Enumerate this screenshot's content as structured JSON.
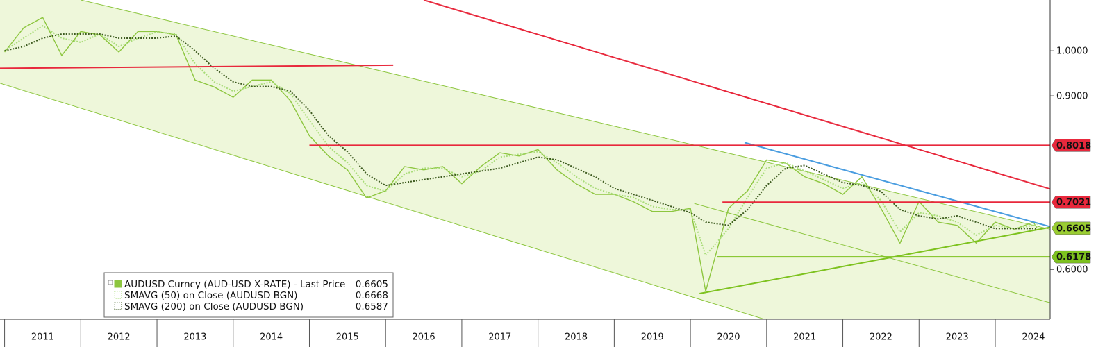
{
  "chart_data": {
    "type": "line",
    "ylog": true,
    "xlim": [
      2010.94,
      2024.72
    ],
    "ylim": [
      0.534,
      1.126
    ],
    "yticks": [
      {
        "value": 1,
        "label": "1.0000"
      },
      {
        "value": 0.9,
        "label": "0.9000"
      },
      {
        "value": 0.6,
        "label": "0.6000"
      }
    ],
    "xticks": [
      2011,
      2012,
      2013,
      2014,
      2015,
      2016,
      2017,
      2018,
      2019,
      2020,
      2021,
      2022,
      2023,
      2024
    ],
    "x": [
      2011,
      2011.25,
      2011.5,
      2011.75,
      2012,
      2012.25,
      2012.5,
      2012.75,
      2013,
      2013.25,
      2013.5,
      2013.75,
      2014,
      2014.25,
      2014.5,
      2014.75,
      2015,
      2015.25,
      2015.5,
      2015.75,
      2016,
      2016.25,
      2016.5,
      2016.75,
      2017,
      2017.25,
      2017.5,
      2017.75,
      2018,
      2018.25,
      2018.5,
      2018.75,
      2019,
      2019.25,
      2019.5,
      2019.75,
      2020,
      2020.2,
      2020.5,
      2020.75,
      2021,
      2021.25,
      2021.5,
      2021.75,
      2022,
      2022.25,
      2022.5,
      2022.75,
      2023,
      2023.25,
      2023.5,
      2023.75,
      2024,
      2024.25,
      2024.5,
      2024.55
    ],
    "series": [
      {
        "name": "AUDUSD Curncy (AUD-USD X-RATE) - Last Price",
        "color": "#8dc63f",
        "style": "solid",
        "last": 0.6605,
        "values": [
          0.997,
          1.055,
          1.081,
          0.989,
          1.046,
          1.038,
          0.997,
          1.046,
          1.046,
          1.038,
          0.934,
          0.919,
          0.897,
          0.934,
          0.934,
          0.89,
          0.82,
          0.782,
          0.757,
          0.709,
          0.721,
          0.763,
          0.757,
          0.763,
          0.733,
          0.763,
          0.788,
          0.782,
          0.794,
          0.757,
          0.733,
          0.715,
          0.715,
          0.703,
          0.687,
          0.687,
          0.692,
          0.57,
          0.692,
          0.721,
          0.775,
          0.769,
          0.745,
          0.733,
          0.715,
          0.745,
          0.692,
          0.638,
          0.703,
          0.67,
          0.665,
          0.638,
          0.67,
          0.659,
          0.67,
          0.6605
        ]
      },
      {
        "name": "SMAVG (50)  on Close (AUDUSD BGN)",
        "color": "#a8dc78",
        "style": "dotted",
        "last": 0.6668,
        "values": [
          1.0,
          1.03,
          1.06,
          1.03,
          1.02,
          1.04,
          1.01,
          1.03,
          1.045,
          1.04,
          0.97,
          0.93,
          0.91,
          0.92,
          0.93,
          0.905,
          0.85,
          0.8,
          0.77,
          0.73,
          0.72,
          0.75,
          0.76,
          0.76,
          0.745,
          0.755,
          0.78,
          0.785,
          0.79,
          0.77,
          0.745,
          0.725,
          0.715,
          0.71,
          0.695,
          0.69,
          0.69,
          0.62,
          0.66,
          0.71,
          0.76,
          0.77,
          0.755,
          0.74,
          0.725,
          0.735,
          0.705,
          0.655,
          0.685,
          0.68,
          0.67,
          0.65,
          0.665,
          0.66,
          0.665,
          0.6668
        ]
      },
      {
        "name": "SMAVG (200)  on Close (AUDUSD BGN)",
        "color": "#3d5a1f",
        "style": "dotted",
        "last": 0.6587,
        "values": [
          1.0,
          1.01,
          1.03,
          1.04,
          1.04,
          1.04,
          1.03,
          1.03,
          1.03,
          1.035,
          1.0,
          0.96,
          0.93,
          0.92,
          0.92,
          0.91,
          0.87,
          0.82,
          0.79,
          0.75,
          0.73,
          0.735,
          0.74,
          0.745,
          0.75,
          0.755,
          0.76,
          0.77,
          0.78,
          0.775,
          0.76,
          0.745,
          0.725,
          0.715,
          0.705,
          0.695,
          0.685,
          0.67,
          0.665,
          0.69,
          0.73,
          0.76,
          0.765,
          0.75,
          0.735,
          0.73,
          0.72,
          0.69,
          0.68,
          0.675,
          0.68,
          0.67,
          0.66,
          0.66,
          0.66,
          0.6587
        ]
      }
    ],
    "channel": {
      "color": "#8dc63f",
      "upper": [
        [
          2012.0,
          1.126
        ],
        [
          2024.72,
          0.659
        ]
      ],
      "lower": [
        [
          2010.94,
          0.927
        ],
        [
          2020.97,
          0.534
        ]
      ],
      "inner": [
        [
          2020.05,
          0.7
        ],
        [
          2024.72,
          0.555
        ]
      ]
    },
    "trendlines": [
      {
        "color": "#e8283c",
        "points": [
          [
            2010.94,
            0.96
          ],
          [
            2016.1,
            0.967
          ]
        ]
      },
      {
        "color": "#e8283c",
        "points": [
          [
            2016.5,
            1.126
          ],
          [
            2024.72,
            0.724
          ]
        ]
      },
      {
        "color": "#4a9de0",
        "points": [
          [
            2020.71,
            0.807
          ],
          [
            2024.72,
            0.663
          ]
        ]
      },
      {
        "color": "#7dc21e",
        "points": [
          [
            2020.12,
            0.567
          ],
          [
            2024.72,
            0.662
          ]
        ]
      }
    ],
    "levels": [
      {
        "value": 0.8018,
        "x_start": 2015.0,
        "color": "#e8283c"
      },
      {
        "value": 0.7021,
        "x_start": 2020.42,
        "color": "#e8283c"
      },
      {
        "value": 0.6178,
        "x_start": 2020.35,
        "color": "#7dc21e"
      }
    ],
    "last_tag_color": "#9acd32"
  }
}
